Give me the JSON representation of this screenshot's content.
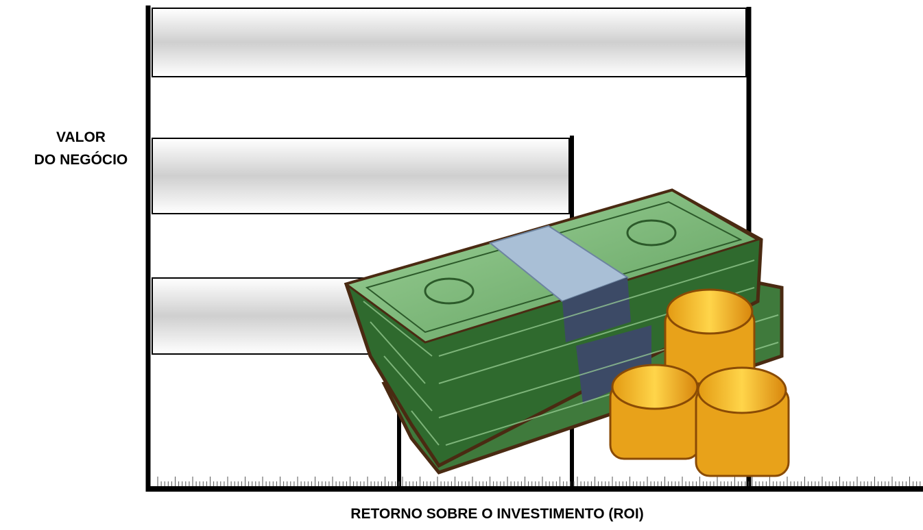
{
  "y_axis_label": {
    "line1": "VALOR",
    "line2": "DO NEGÓCIO"
  },
  "x_axis_label": "RETORNO SOBRE O INVESTIMENTO (ROI)"
}
